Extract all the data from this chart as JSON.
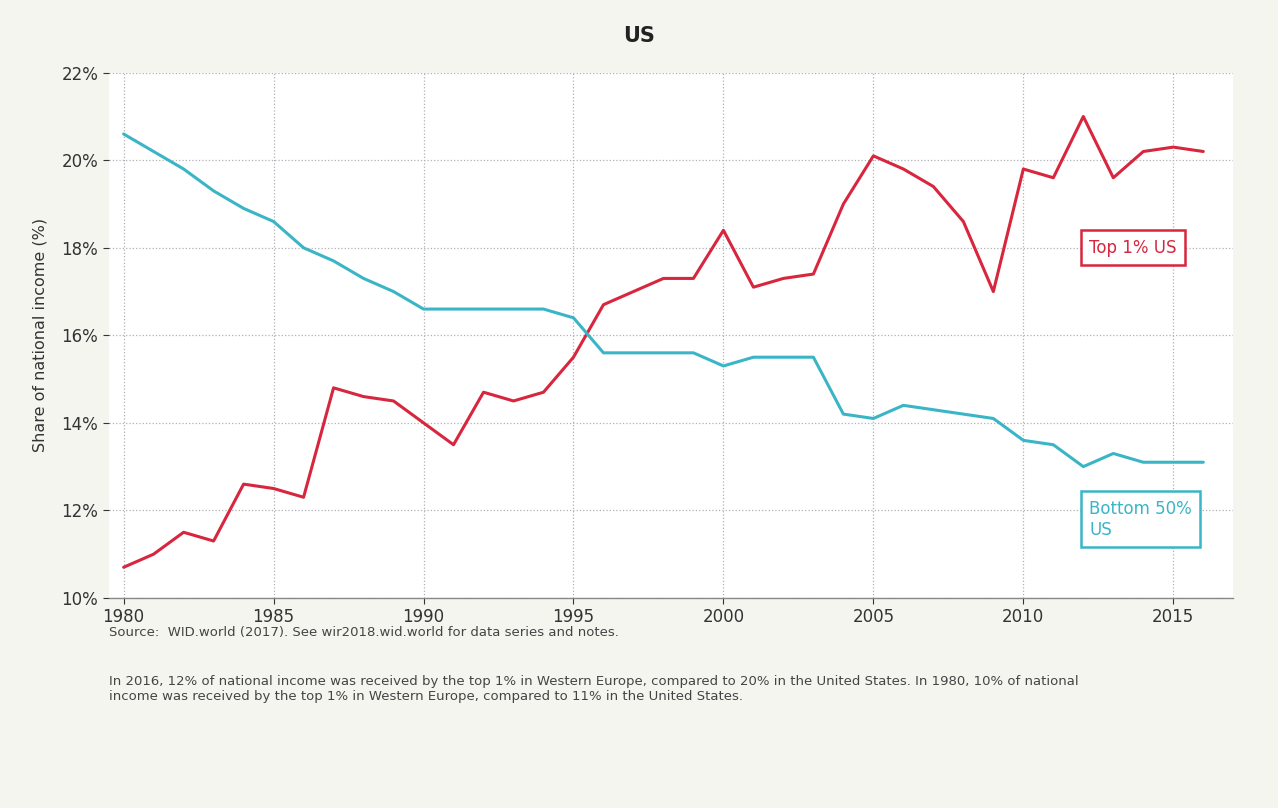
{
  "title": "US",
  "ylabel": "Share of national income (%)",
  "source_text": "Source:  WID.world (2017). See wir2018.wid.world for data series and notes.",
  "note_text": "In 2016, 12% of national income was received by the top 1% in Western Europe, compared to 20% in the United States. In 1980, 10% of national\nincome was received by the top 1% in Western Europe, compared to 11% in the United States.",
  "top1_label": "Top 1% US",
  "bottom50_label": "Bottom 50%\nUS",
  "top1_color": "#d7263d",
  "bottom50_color": "#3ab5c6",
  "background_color": "#f5f5f0",
  "plot_bg_color": "#ffffff",
  "ylim": [
    10,
    22
  ],
  "xlim": [
    1979.5,
    2017.0
  ],
  "yticks": [
    10,
    12,
    14,
    16,
    18,
    20,
    22
  ],
  "xticks": [
    1980,
    1985,
    1990,
    1995,
    2000,
    2005,
    2010,
    2015
  ],
  "top1_years": [
    1980,
    1981,
    1982,
    1983,
    1984,
    1985,
    1986,
    1987,
    1988,
    1989,
    1990,
    1991,
    1992,
    1993,
    1994,
    1995,
    1996,
    1997,
    1998,
    1999,
    2000,
    2001,
    2002,
    2003,
    2004,
    2005,
    2006,
    2007,
    2008,
    2009,
    2010,
    2011,
    2012,
    2013,
    2014,
    2015,
    2016
  ],
  "top1_values": [
    10.7,
    11.0,
    11.5,
    11.3,
    12.6,
    12.5,
    12.3,
    14.8,
    14.6,
    14.5,
    14.0,
    13.5,
    14.7,
    14.5,
    14.7,
    15.5,
    16.7,
    17.0,
    17.3,
    17.3,
    18.4,
    17.1,
    17.3,
    17.4,
    19.0,
    20.1,
    19.8,
    19.4,
    18.6,
    17.0,
    19.8,
    19.6,
    21.0,
    19.6,
    20.2,
    20.3,
    20.2
  ],
  "bottom50_years": [
    1980,
    1981,
    1982,
    1983,
    1984,
    1985,
    1986,
    1987,
    1988,
    1989,
    1990,
    1991,
    1992,
    1993,
    1994,
    1995,
    1996,
    1997,
    1998,
    1999,
    2000,
    2001,
    2002,
    2003,
    2004,
    2005,
    2006,
    2007,
    2008,
    2009,
    2010,
    2011,
    2012,
    2013,
    2014,
    2015,
    2016
  ],
  "bottom50_values": [
    20.6,
    20.2,
    19.8,
    19.3,
    18.9,
    18.6,
    18.0,
    17.7,
    17.3,
    17.0,
    16.6,
    16.6,
    16.6,
    16.6,
    16.6,
    16.4,
    15.6,
    15.6,
    15.6,
    15.6,
    15.3,
    15.5,
    15.5,
    15.5,
    14.2,
    14.1,
    14.4,
    14.3,
    14.2,
    14.1,
    13.6,
    13.5,
    13.0,
    13.3,
    13.1,
    13.1,
    13.1
  ]
}
